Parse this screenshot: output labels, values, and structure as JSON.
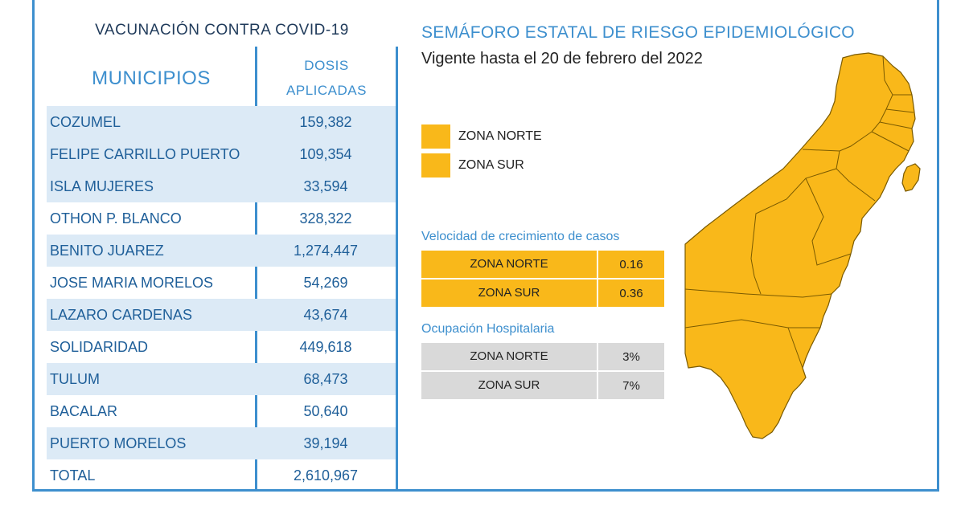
{
  "left": {
    "title": "VACUNACIÓN CONTRA COVID-19",
    "col_municipios": "MUNICIPIOS",
    "col_dosis_line1": "DOSIS",
    "col_dosis_line2": "APLICADAS",
    "rows": [
      {
        "name": "COZUMEL",
        "value": "159,382"
      },
      {
        "name": "FELIPE CARRILLO PUERTO",
        "value": "109,354"
      },
      {
        "name": "ISLA MUJERES",
        "value": "33,594"
      },
      {
        "name": "OTHON P. BLANCO",
        "value": "328,322"
      },
      {
        "name": "BENITO JUAREZ",
        "value": "1,274,447"
      },
      {
        "name": "JOSE MARIA MORELOS",
        "value": "54,269"
      },
      {
        "name": "LAZARO CARDENAS",
        "value": "43,674"
      },
      {
        "name": "SOLIDARIDAD",
        "value": "449,618"
      },
      {
        "name": "TULUM",
        "value": "68,473"
      },
      {
        "name": "BACALAR",
        "value": "50,640"
      },
      {
        "name": "PUERTO MORELOS",
        "value": "39,194"
      },
      {
        "name": "TOTAL",
        "value": "2,610,967"
      }
    ]
  },
  "right": {
    "title": "SEMÁFORO ESTATAL DE RIESGO EPIDEMIOLÓGICO",
    "subtitle": "Vigente hasta el 20 de febrero del 2022",
    "legend": [
      {
        "label": "ZONA NORTE",
        "color": "#f9b81a"
      },
      {
        "label": "ZONA SUR",
        "color": "#f9b81a"
      }
    ],
    "velocidad": {
      "title": "Velocidad de crecimiento de casos",
      "rows": [
        {
          "zone": "ZONA NORTE",
          "value": "0.16"
        },
        {
          "zone": "ZONA SUR",
          "value": "0.36"
        }
      ]
    },
    "ocupacion": {
      "title": "Ocupación Hospitalaria",
      "rows": [
        {
          "zone": "ZONA NORTE",
          "value": "3%"
        },
        {
          "zone": "ZONA SUR",
          "value": "7%"
        }
      ]
    }
  },
  "colors": {
    "accent_blue": "#3d8fce",
    "zone_yellow": "#f9b81a",
    "row_shade": "#dceaf6",
    "grey": "#d9d9d9"
  }
}
